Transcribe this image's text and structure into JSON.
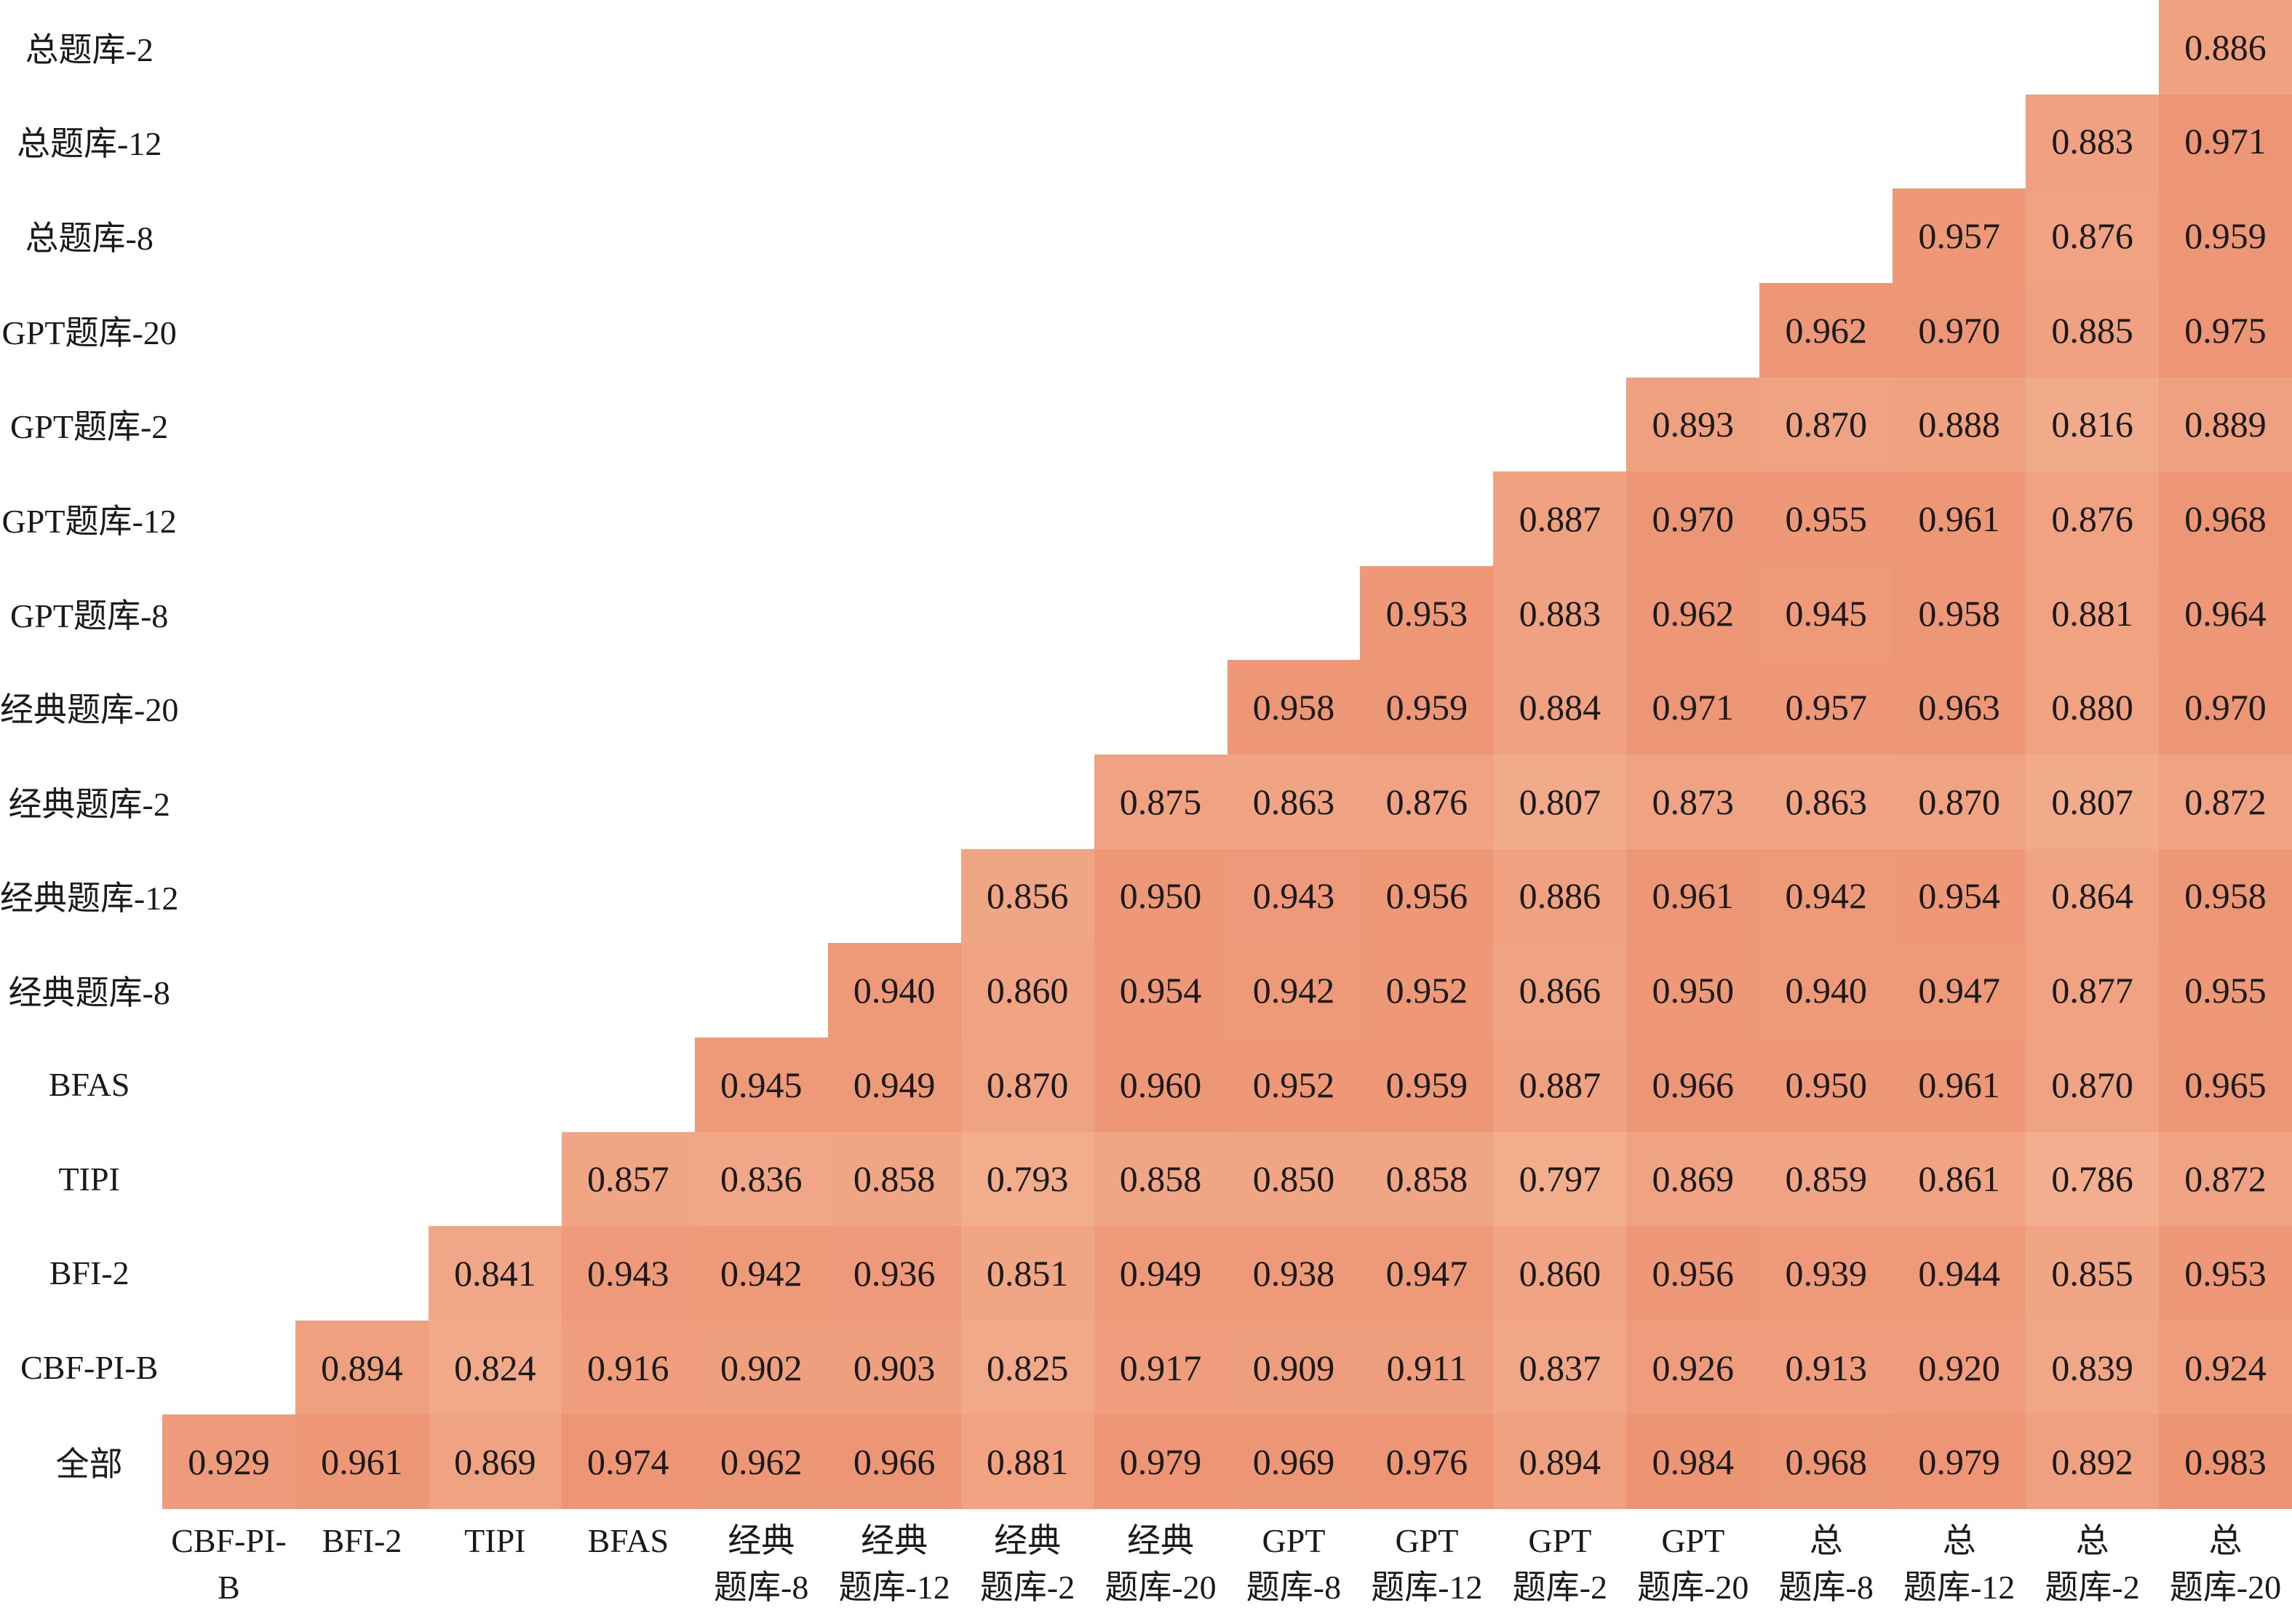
{
  "chart_data": {
    "type": "heatmap",
    "title": "",
    "legend": "none",
    "grid_lines": false,
    "value_format": "0.000",
    "text_color": "#1a1a1a",
    "background_color": "#ffffff",
    "colormap": {
      "min_value": 0.786,
      "max_value": 0.984,
      "min_color": "#f2ae8e",
      "max_color": "#ed9473"
    },
    "columns": [
      "CBF-PI-B",
      "BFI-2",
      "TIPI",
      "BFAS",
      "经典\n题库-8",
      "经典\n题库-12",
      "经典\n题库-2",
      "经典\n题库-20",
      "GPT\n题库-8",
      "GPT\n题库-12",
      "GPT\n题库-2",
      "GPT\n题库-20",
      "总\n题库-8",
      "总\n题库-12",
      "总\n题库-2",
      "总\n题库-20"
    ],
    "rows": [
      {
        "label": "总题库-2",
        "values": [
          null,
          null,
          null,
          null,
          null,
          null,
          null,
          null,
          null,
          null,
          null,
          null,
          null,
          null,
          null,
          "0.886"
        ]
      },
      {
        "label": "总题库-12",
        "values": [
          null,
          null,
          null,
          null,
          null,
          null,
          null,
          null,
          null,
          null,
          null,
          null,
          null,
          null,
          "0.883",
          "0.971"
        ]
      },
      {
        "label": "总题库-8",
        "values": [
          null,
          null,
          null,
          null,
          null,
          null,
          null,
          null,
          null,
          null,
          null,
          null,
          null,
          "0.957",
          "0.876",
          "0.959"
        ]
      },
      {
        "label": "GPT题库-20",
        "values": [
          null,
          null,
          null,
          null,
          null,
          null,
          null,
          null,
          null,
          null,
          null,
          null,
          "0.962",
          "0.970",
          "0.885",
          "0.975"
        ]
      },
      {
        "label": "GPT题库-2",
        "values": [
          null,
          null,
          null,
          null,
          null,
          null,
          null,
          null,
          null,
          null,
          null,
          "0.893",
          "0.870",
          "0.888",
          "0.816",
          "0.889"
        ]
      },
      {
        "label": "GPT题库-12",
        "values": [
          null,
          null,
          null,
          null,
          null,
          null,
          null,
          null,
          null,
          null,
          "0.887",
          "0.970",
          "0.955",
          "0.961",
          "0.876",
          "0.968"
        ]
      },
      {
        "label": "GPT题库-8",
        "values": [
          null,
          null,
          null,
          null,
          null,
          null,
          null,
          null,
          null,
          "0.953",
          "0.883",
          "0.962",
          "0.945",
          "0.958",
          "0.881",
          "0.964"
        ]
      },
      {
        "label": "经典题库-20",
        "values": [
          null,
          null,
          null,
          null,
          null,
          null,
          null,
          null,
          "0.958",
          "0.959",
          "0.884",
          "0.971",
          "0.957",
          "0.963",
          "0.880",
          "0.970"
        ]
      },
      {
        "label": "经典题库-2",
        "values": [
          null,
          null,
          null,
          null,
          null,
          null,
          null,
          "0.875",
          "0.863",
          "0.876",
          "0.807",
          "0.873",
          "0.863",
          "0.870",
          "0.807",
          "0.872"
        ]
      },
      {
        "label": "经典题库-12",
        "values": [
          null,
          null,
          null,
          null,
          null,
          null,
          "0.856",
          "0.950",
          "0.943",
          "0.956",
          "0.886",
          "0.961",
          "0.942",
          "0.954",
          "0.864",
          "0.958"
        ]
      },
      {
        "label": "经典题库-8",
        "values": [
          null,
          null,
          null,
          null,
          null,
          "0.940",
          "0.860",
          "0.954",
          "0.942",
          "0.952",
          "0.866",
          "0.950",
          "0.940",
          "0.947",
          "0.877",
          "0.955"
        ]
      },
      {
        "label": "BFAS",
        "values": [
          null,
          null,
          null,
          null,
          "0.945",
          "0.949",
          "0.870",
          "0.960",
          "0.952",
          "0.959",
          "0.887",
          "0.966",
          "0.950",
          "0.961",
          "0.870",
          "0.965"
        ]
      },
      {
        "label": "TIPI",
        "values": [
          null,
          null,
          null,
          "0.857",
          "0.836",
          "0.858",
          "0.793",
          "0.858",
          "0.850",
          "0.858",
          "0.797",
          "0.869",
          "0.859",
          "0.861",
          "0.786",
          "0.872"
        ]
      },
      {
        "label": "BFI-2",
        "values": [
          null,
          null,
          "0.841",
          "0.943",
          "0.942",
          "0.936",
          "0.851",
          "0.949",
          "0.938",
          "0.947",
          "0.860",
          "0.956",
          "0.939",
          "0.944",
          "0.855",
          "0.953"
        ]
      },
      {
        "label": "CBF-PI-B",
        "values": [
          null,
          "0.894",
          "0.824",
          "0.916",
          "0.902",
          "0.903",
          "0.825",
          "0.917",
          "0.909",
          "0.911",
          "0.837",
          "0.926",
          "0.913",
          "0.920",
          "0.839",
          "0.924"
        ]
      },
      {
        "label": "全部",
        "values": [
          "0.929",
          "0.961",
          "0.869",
          "0.974",
          "0.962",
          "0.966",
          "0.881",
          "0.979",
          "0.969",
          "0.976",
          "0.894",
          "0.984",
          "0.968",
          "0.979",
          "0.892",
          "0.983"
        ]
      }
    ]
  }
}
